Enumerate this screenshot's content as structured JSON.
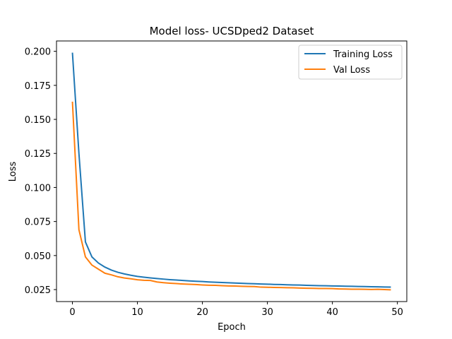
{
  "chart_data": {
    "type": "line",
    "title": "Model loss- UCSDped2 Dataset",
    "xlabel": "Epoch",
    "ylabel": "Loss",
    "xlim": [
      -2.45,
      51.45
    ],
    "ylim": [
      0.0162,
      0.2076
    ],
    "xticks": [
      0,
      10,
      20,
      30,
      40,
      50
    ],
    "xtick_labels": [
      "0",
      "10",
      "20",
      "30",
      "40",
      "50"
    ],
    "yticks": [
      0.025,
      0.05,
      0.075,
      0.1,
      0.125,
      0.15,
      0.175,
      0.2
    ],
    "ytick_labels": [
      "0.025",
      "0.050",
      "0.075",
      "0.100",
      "0.125",
      "0.150",
      "0.175",
      "0.200"
    ],
    "grid": false,
    "legend_position": "top-right",
    "x": [
      0,
      1,
      2,
      3,
      4,
      5,
      6,
      7,
      8,
      9,
      10,
      11,
      12,
      13,
      14,
      15,
      16,
      17,
      18,
      19,
      20,
      21,
      22,
      23,
      24,
      25,
      26,
      27,
      28,
      29,
      30,
      31,
      32,
      33,
      34,
      35,
      36,
      37,
      38,
      39,
      40,
      41,
      42,
      43,
      44,
      45,
      46,
      47,
      48,
      49
    ],
    "series": [
      {
        "name": "Training Loss",
        "color": "#1f77b4",
        "values": [
          0.199,
          0.125,
          0.06,
          0.049,
          0.0445,
          0.0415,
          0.0393,
          0.0377,
          0.0365,
          0.0355,
          0.0347,
          0.0341,
          0.0336,
          0.0331,
          0.0327,
          0.0323,
          0.032,
          0.0317,
          0.0314,
          0.0311,
          0.0309,
          0.0306,
          0.0304,
          0.0302,
          0.03,
          0.0298,
          0.0296,
          0.0294,
          0.0293,
          0.0291,
          0.029,
          0.0288,
          0.0287,
          0.0285,
          0.0284,
          0.0283,
          0.0281,
          0.028,
          0.0279,
          0.0278,
          0.0277,
          0.0276,
          0.0275,
          0.0274,
          0.0273,
          0.0272,
          0.0271,
          0.027,
          0.0269,
          0.0268
        ]
      },
      {
        "name": "Val Loss",
        "color": "#ff7f0e",
        "values": [
          0.163,
          0.069,
          0.049,
          0.043,
          0.04,
          0.037,
          0.0358,
          0.0344,
          0.0335,
          0.0329,
          0.0322,
          0.0318,
          0.0317,
          0.0306,
          0.0301,
          0.0297,
          0.0294,
          0.0291,
          0.0289,
          0.0287,
          0.0284,
          0.0282,
          0.0281,
          0.0279,
          0.0277,
          0.0276,
          0.0274,
          0.0273,
          0.0272,
          0.0268,
          0.0267,
          0.0266,
          0.0265,
          0.0264,
          0.0263,
          0.0261,
          0.026,
          0.0259,
          0.0258,
          0.0258,
          0.0257,
          0.0255,
          0.0254,
          0.0253,
          0.0253,
          0.0252,
          0.0251,
          0.0252,
          0.025,
          0.0248
        ]
      }
    ]
  }
}
